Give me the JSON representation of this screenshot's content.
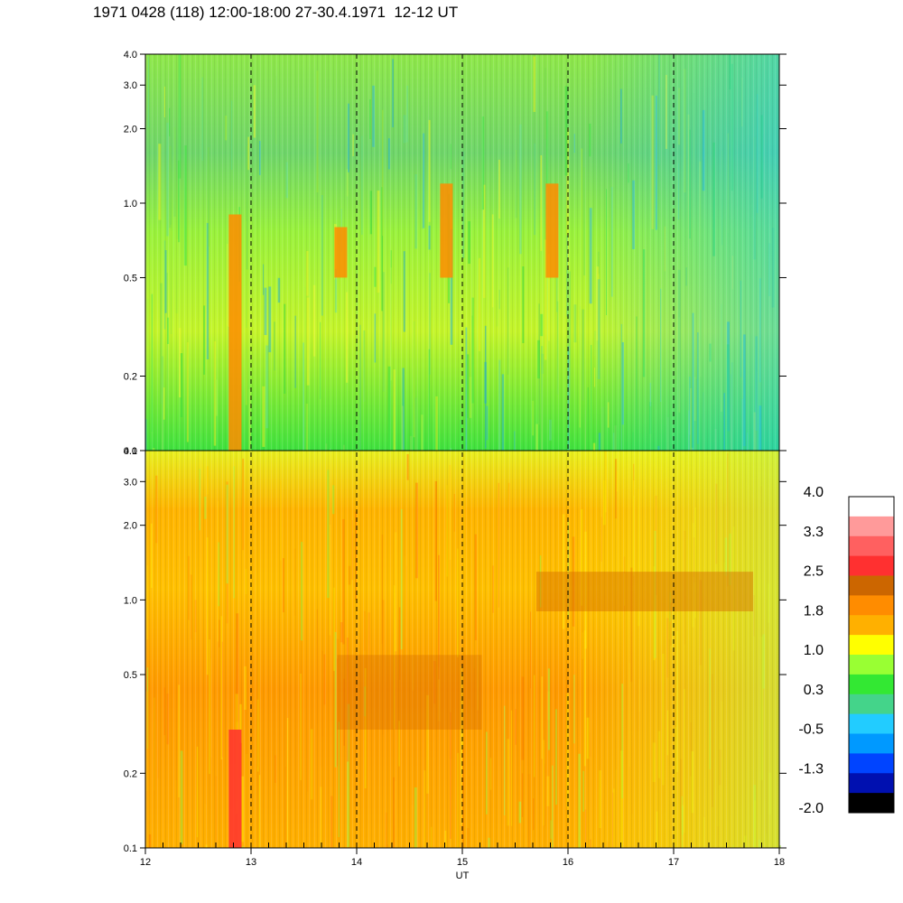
{
  "chart_data": {
    "type": "heatmap",
    "title": "1971 0428 (118) 12:00-18:00 27-30.4.1971  12-12 UT",
    "xlabel": "UT",
    "x_ticks": [
      "12",
      "13",
      "14",
      "15",
      "16",
      "17",
      "18"
    ],
    "xlim": [
      12,
      18
    ],
    "y_scale": "log",
    "ylim": [
      0.1,
      4.0
    ],
    "y_ticks": [
      "0.1",
      "0.2",
      "0.5",
      "1.0",
      "2.0",
      "3.0",
      "4.0"
    ],
    "panels": [
      {
        "name": "upper",
        "dominant_colors": [
          "green",
          "light-green",
          "teal",
          "yellow"
        ],
        "features": [
          {
            "x": 12.85,
            "y_from": 0.1,
            "y_to": 0.9,
            "color": "orange"
          },
          {
            "x": 13.85,
            "y_from": 0.5,
            "y_to": 0.8,
            "color": "orange"
          },
          {
            "x": 14.85,
            "y_from": 0.5,
            "y_to": 1.2,
            "color": "orange"
          },
          {
            "x": 15.85,
            "y_from": 0.5,
            "y_to": 1.2,
            "color": "orange"
          }
        ]
      },
      {
        "name": "lower",
        "dominant_colors": [
          "orange",
          "yellow",
          "amber",
          "light-green"
        ],
        "features": [
          {
            "x": 12.85,
            "y_from": 0.1,
            "y_to": 0.3,
            "color": "red"
          },
          {
            "x": 14.5,
            "y_from": 0.3,
            "y_to": 0.6,
            "color": "dark-orange"
          },
          {
            "x": 16.0,
            "y_from": 0.9,
            "y_to": 1.3,
            "color": "dark-orange"
          }
        ]
      }
    ],
    "dashed_vlines": [
      13,
      14,
      15,
      16,
      17
    ],
    "colorbar": {
      "labels": [
        "4.0",
        "3.3",
        "2.5",
        "1.8",
        "1.0",
        "0.3",
        "-0.5",
        "-1.3",
        "-2.0"
      ],
      "colors": [
        "#ffffff",
        "#ff9a9a",
        "#ff6060",
        "#ff3030",
        "#cc6600",
        "#ff8c00",
        "#ffb000",
        "#ffff00",
        "#99ff33",
        "#33e833",
        "#44d48a",
        "#22ccff",
        "#0099ff",
        "#0044ff",
        "#0010b0",
        "#000000"
      ]
    }
  }
}
